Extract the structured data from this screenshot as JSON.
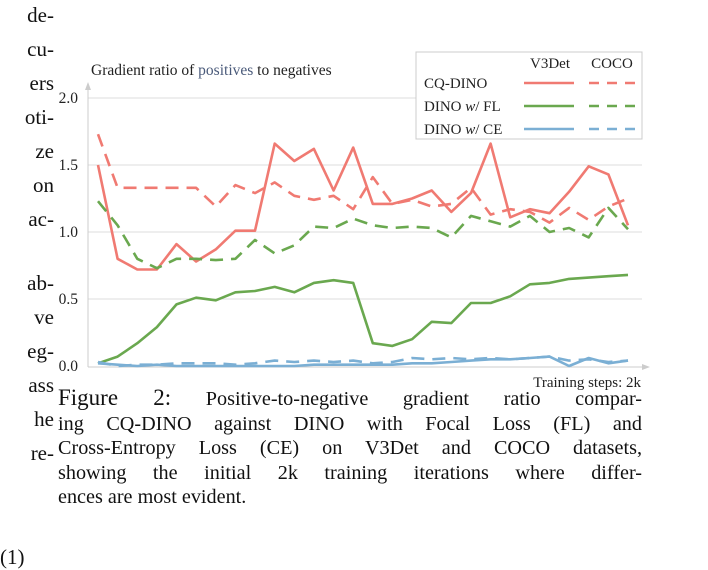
{
  "left_fragments": [
    "de-",
    "cu-",
    "ers",
    "oti-",
    "ze",
    "on",
    "ac-",
    "",
    "ab-",
    "ve",
    "eg-",
    "ass",
    "he",
    "re-"
  ],
  "equation_number": "(1)",
  "caption": {
    "label": "Figure 2:",
    "lines": [
      "Positive-to-negative gradient ratio compar-",
      "ing CQ-DINO against DINO with Focal Loss (FL) and",
      "Cross-Entropy Loss (CE) on V3Det and COCO datasets,",
      "showing the initial 2k training iterations where differ-",
      "ences are most evident."
    ]
  },
  "chart_data": {
    "type": "line",
    "title_parts": [
      "Gradient ratio of ",
      "positives",
      " to negatives"
    ],
    "xlabel": "Training steps: 2k",
    "ylabel": "",
    "ylim": [
      0,
      2.0
    ],
    "yticks": [
      "0.0",
      "0.5",
      "1.0",
      "1.5",
      "2.0"
    ],
    "ytick_values": [
      0,
      0.5,
      1.0,
      1.5,
      2.0
    ],
    "grid": true,
    "legend_position": "top-right",
    "legend_columns": [
      "V3Det",
      "COCO"
    ],
    "legend_rows": [
      {
        "label": "CQ-DINO",
        "label_parts": [
          "CQ-DINO"
        ],
        "color": "#f07a72"
      },
      {
        "label": "DINO w/ FL",
        "label_parts": [
          "DINO ",
          "w",
          "/ FL"
        ],
        "color": "#6aa84f"
      },
      {
        "label": "DINO w/ CE",
        "label_parts": [
          "DINO ",
          "w",
          "/ CE"
        ],
        "color": "#7bafd4"
      }
    ],
    "colors": {
      "title_highlight": "#4a5a7a",
      "axis": "#cccccc",
      "grid": "#dddddd"
    },
    "x": [
      1,
      2,
      3,
      4,
      5,
      6,
      7,
      8,
      9,
      10,
      11,
      12,
      13,
      14,
      15,
      16,
      17,
      18,
      19,
      20,
      21,
      22,
      23,
      24,
      25,
      26,
      27,
      28
    ],
    "series": [
      {
        "name": "CQ-DINO V3Det",
        "method": "CQ-DINO",
        "dataset": "V3Det",
        "style": "solid",
        "color": "#f07a72",
        "values": [
          1.5,
          0.8,
          0.72,
          0.72,
          0.91,
          0.78,
          0.87,
          1.01,
          1.01,
          1.66,
          1.53,
          1.62,
          1.31,
          1.63,
          1.21,
          1.21,
          1.25,
          1.31,
          1.15,
          1.29,
          1.66,
          1.11,
          1.17,
          1.14,
          1.3,
          1.49,
          1.43,
          1.05
        ]
      },
      {
        "name": "CQ-DINO COCO",
        "method": "CQ-DINO",
        "dataset": "COCO",
        "style": "dashed",
        "color": "#f07a72",
        "values": [
          1.73,
          1.33,
          1.33,
          1.33,
          1.33,
          1.33,
          1.19,
          1.35,
          1.29,
          1.37,
          1.27,
          1.24,
          1.27,
          1.17,
          1.41,
          1.21,
          1.24,
          1.19,
          1.21,
          1.33,
          1.13,
          1.17,
          1.15,
          1.07,
          1.18,
          1.09,
          1.19,
          1.25
        ]
      },
      {
        "name": "DINO w/ FL V3Det",
        "method": "DINO w/ FL",
        "dataset": "V3Det",
        "style": "solid",
        "color": "#6aa84f",
        "values": [
          0.02,
          0.07,
          0.17,
          0.29,
          0.46,
          0.51,
          0.49,
          0.55,
          0.56,
          0.59,
          0.55,
          0.62,
          0.64,
          0.62,
          0.17,
          0.15,
          0.2,
          0.33,
          0.32,
          0.47,
          0.47,
          0.52,
          0.61,
          0.62,
          0.65,
          0.66,
          0.67,
          0.68
        ]
      },
      {
        "name": "DINO w/ FL COCO",
        "method": "DINO w/ FL",
        "dataset": "COCO",
        "style": "dashed",
        "color": "#6aa84f",
        "values": [
          1.23,
          1.05,
          0.8,
          0.73,
          0.8,
          0.8,
          0.79,
          0.8,
          0.94,
          0.84,
          0.9,
          1.04,
          1.03,
          1.1,
          1.05,
          1.03,
          1.04,
          1.03,
          0.96,
          1.12,
          1.08,
          1.04,
          1.12,
          1.0,
          1.03,
          0.96,
          1.18,
          1.02
        ]
      },
      {
        "name": "DINO w/ CE V3Det",
        "method": "DINO w/ CE",
        "dataset": "V3Det",
        "style": "solid",
        "color": "#7bafd4",
        "values": [
          0.02,
          0.01,
          0.0,
          0.01,
          0.0,
          0.0,
          0.0,
          0.0,
          0.0,
          0.0,
          0.0,
          0.01,
          0.01,
          0.01,
          0.01,
          0.01,
          0.02,
          0.02,
          0.03,
          0.04,
          0.05,
          0.05,
          0.06,
          0.07,
          0.0,
          0.06,
          0.02,
          0.04
        ]
      },
      {
        "name": "DINO w/ CE COCO",
        "method": "DINO w/ CE",
        "dataset": "COCO",
        "style": "dashed",
        "color": "#7bafd4",
        "values": [
          0.03,
          0.0,
          0.01,
          0.01,
          0.02,
          0.02,
          0.02,
          0.01,
          0.02,
          0.04,
          0.03,
          0.04,
          0.03,
          0.04,
          0.02,
          0.03,
          0.06,
          0.05,
          0.06,
          0.05,
          0.06,
          0.05,
          0.06,
          0.07,
          0.04,
          0.05,
          0.03,
          0.04
        ]
      }
    ]
  }
}
